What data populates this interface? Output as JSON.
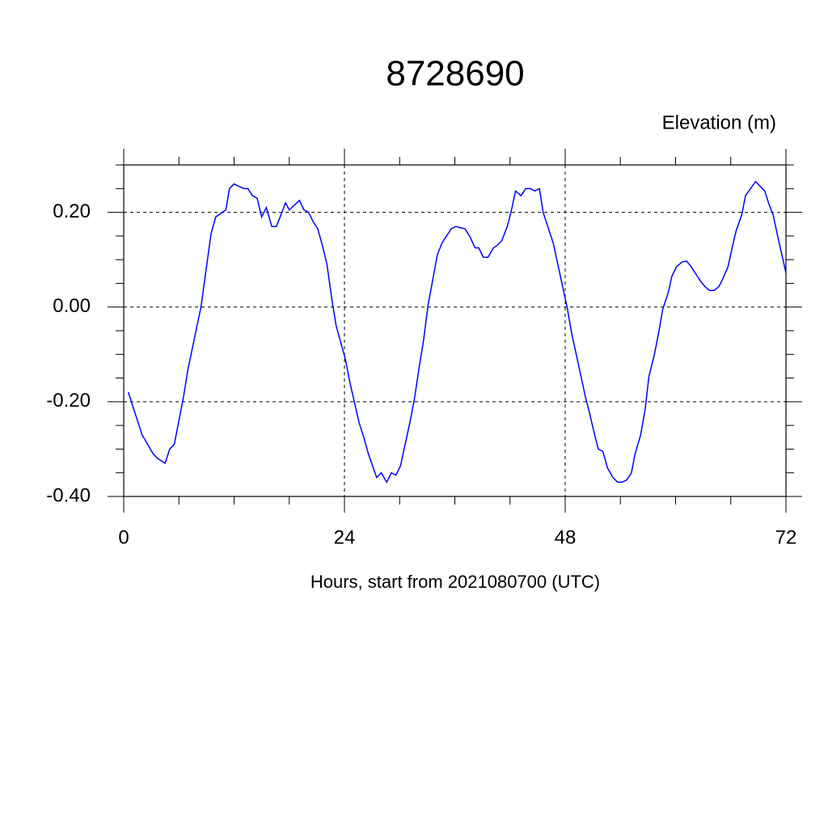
{
  "chart_data": {
    "type": "line",
    "title": "8728690",
    "y_axis_label": "Elevation (m)",
    "x_axis_label": "Hours, start from 2021080700 (UTC)",
    "xlim": [
      0,
      72
    ],
    "ylim": [
      -0.4,
      0.3
    ],
    "xticks": [
      0,
      24,
      48,
      72
    ],
    "yticks": [
      {
        "value": -0.4,
        "label": "-0.40"
      },
      {
        "value": -0.2,
        "label": "-0.20"
      },
      {
        "value": 0,
        "label": "0.00"
      },
      {
        "value": 0.2,
        "label": "0.20"
      }
    ],
    "xminorticks": [
      6,
      12,
      18,
      30,
      36,
      42,
      54,
      60,
      66
    ],
    "yminorticks": [
      -0.35,
      -0.3,
      -0.25,
      -0.15,
      -0.1,
      -0.05,
      0.05,
      0.1,
      0.15,
      0.25,
      0.3
    ],
    "grid": true,
    "series": [
      {
        "color": "#0000ff",
        "x": [
          0.5,
          2.0,
          3.2,
          3.7,
          4.5,
          5.0,
          5.5,
          6.5,
          7.0,
          8.4,
          9.0,
          9.5,
          10.0,
          11.1,
          11.5,
          12.0,
          12.5,
          13.1,
          13.5,
          14.0,
          14.5,
          15.0,
          15.5,
          16.1,
          16.6,
          17.6,
          18.0,
          19.1,
          19.6,
          20.1,
          20.6,
          21.1,
          21.6,
          22.1,
          22.6,
          23.1,
          24.1,
          24.6,
          25.6,
          26.1,
          26.6,
          27.5,
          28.0,
          28.6,
          29.1,
          29.6,
          30.1,
          30.6,
          31.1,
          31.6,
          32.1,
          32.6,
          33.1,
          34.1,
          34.6,
          35.6,
          36.1,
          37.1,
          37.6,
          38.2,
          38.6,
          39.1,
          39.6,
          40.2,
          40.6,
          41.1,
          41.7,
          42.1,
          42.6,
          43.2,
          43.7,
          44.2,
          44.7,
          45.2,
          45.6,
          46.7,
          47.2,
          48.2,
          48.7,
          49.7,
          50.2,
          50.6,
          51.2,
          51.6,
          52.1,
          52.6,
          53.2,
          53.7,
          54.2,
          54.7,
          55.2,
          55.6,
          56.2,
          56.7,
          57.1,
          57.7,
          58.2,
          58.6,
          59.2,
          59.6,
          60.1,
          60.7,
          61.2,
          61.7,
          62.7,
          63.2,
          63.7,
          64.2,
          64.7,
          65.1,
          65.7,
          66.2,
          66.6,
          67.2,
          67.6,
          68.7,
          69.2,
          69.7,
          70.1,
          70.6,
          71.1,
          72.0
        ],
        "values": [
          -0.18,
          -0.27,
          -0.31,
          -0.32,
          -0.33,
          -0.3,
          -0.29,
          -0.19,
          -0.13,
          0.0,
          0.085,
          0.155,
          0.19,
          0.205,
          0.25,
          0.26,
          0.255,
          0.25,
          0.25,
          0.235,
          0.23,
          0.19,
          0.21,
          0.17,
          0.17,
          0.22,
          0.205,
          0.225,
          0.205,
          0.2,
          0.18,
          0.165,
          0.13,
          0.09,
          0.02,
          -0.04,
          -0.11,
          -0.16,
          -0.245,
          -0.275,
          -0.31,
          -0.36,
          -0.35,
          -0.37,
          -0.35,
          -0.355,
          -0.335,
          -0.29,
          -0.245,
          -0.195,
          -0.13,
          -0.07,
          0.005,
          0.11,
          0.135,
          0.165,
          0.17,
          0.165,
          0.15,
          0.125,
          0.125,
          0.105,
          0.105,
          0.125,
          0.13,
          0.14,
          0.17,
          0.2,
          0.245,
          0.235,
          0.25,
          0.25,
          0.245,
          0.25,
          0.2,
          0.135,
          0.09,
          0.0,
          -0.055,
          -0.145,
          -0.19,
          -0.22,
          -0.27,
          -0.3,
          -0.305,
          -0.34,
          -0.36,
          -0.37,
          -0.37,
          -0.365,
          -0.35,
          -0.31,
          -0.27,
          -0.215,
          -0.147,
          -0.1,
          -0.05,
          -0.005,
          0.03,
          0.065,
          0.085,
          0.095,
          0.097,
          0.085,
          0.055,
          0.043,
          0.035,
          0.035,
          0.043,
          0.058,
          0.085,
          0.13,
          0.162,
          0.195,
          0.235,
          0.265,
          0.255,
          0.245,
          0.22,
          0.195,
          0.15,
          0.072
        ]
      }
    ]
  }
}
